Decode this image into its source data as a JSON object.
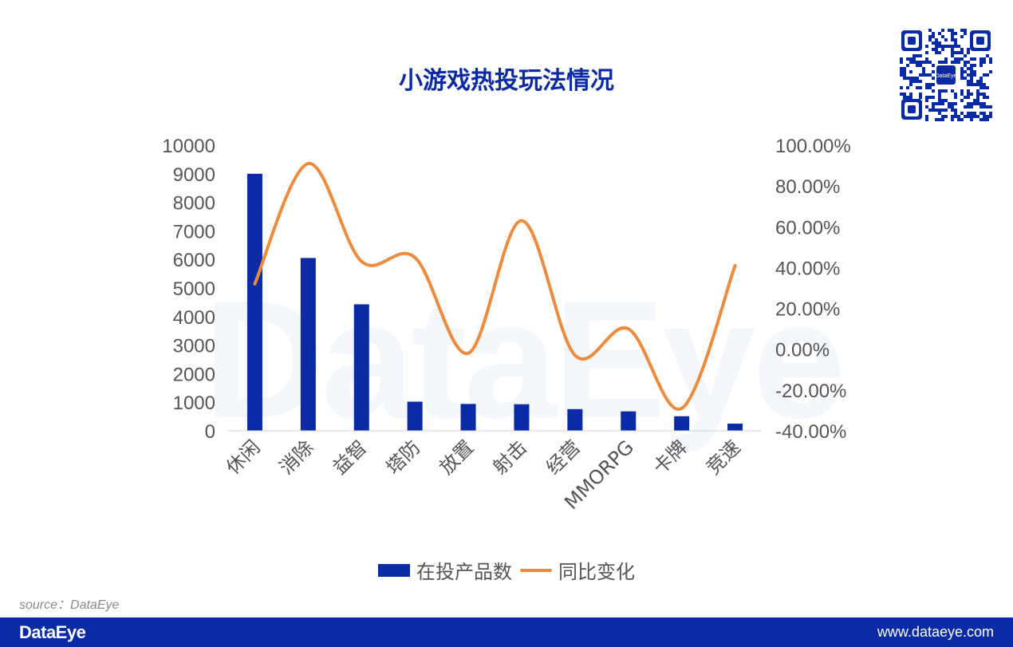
{
  "title": "小游戏热投玩法情况",
  "watermark": "DataEye",
  "source": "source：DataEye",
  "footer": {
    "brand": "DataEye",
    "url": "www.dataeye.com"
  },
  "qr": {
    "label": "DataEye"
  },
  "colors": {
    "bar": "#0b2aa5",
    "line": "#ef8a3a",
    "brand": "#0b2aa5"
  },
  "legend": {
    "bar_label": "在投产品数",
    "line_label": "同比变化"
  },
  "chart_data": {
    "type": "bar",
    "categories": [
      "休闲",
      "消除",
      "益智",
      "塔防",
      "放置",
      "射击",
      "经营",
      "MMORPG",
      "卡牌",
      "竞速"
    ],
    "series": [
      {
        "name": "在投产品数",
        "type": "bar",
        "axis": "left",
        "values": [
          9000,
          6050,
          4430,
          1020,
          940,
          930,
          760,
          680,
          510,
          250
        ]
      },
      {
        "name": "同比变化",
        "type": "line",
        "axis": "right",
        "values": [
          0.32,
          0.91,
          0.43,
          0.45,
          -0.02,
          0.63,
          -0.03,
          0.1,
          -0.29,
          0.41
        ]
      }
    ],
    "y_left": {
      "min": 0,
      "max": 10000,
      "step": 1000,
      "tick_labels": [
        "0",
        "1000",
        "2000",
        "3000",
        "4000",
        "5000",
        "6000",
        "7000",
        "8000",
        "9000",
        "10000"
      ]
    },
    "y_right": {
      "min": -0.4,
      "max": 1.0,
      "step": 0.2,
      "tick_labels": [
        "-40.00%",
        "-20.00%",
        "0.00%",
        "20.00%",
        "40.00%",
        "60.00%",
        "80.00%",
        "100.00%"
      ]
    },
    "legend_position": "bottom",
    "grid": false
  }
}
